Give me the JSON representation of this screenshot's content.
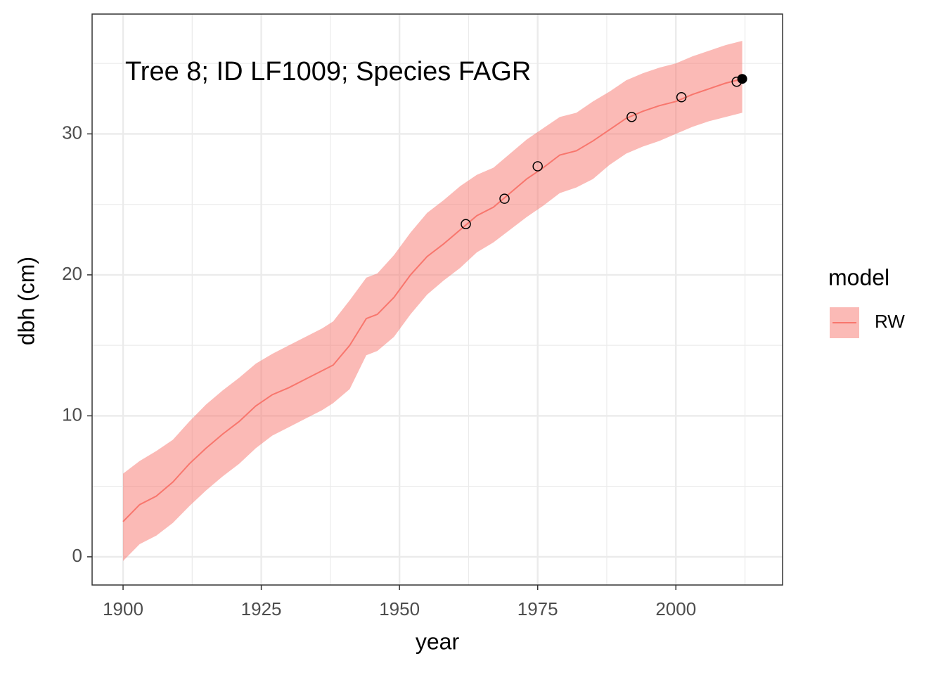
{
  "chart_data": {
    "type": "line",
    "x_label": "year",
    "y_label": "dbh (cm)",
    "annotation": "Tree 8; ID LF1009; Species FAGR",
    "legend_title": "model",
    "legend": "right",
    "x": [
      1900,
      1903,
      1906,
      1909,
      1912,
      1915,
      1918,
      1921,
      1924,
      1927,
      1930,
      1933,
      1936,
      1938,
      1941,
      1944,
      1946,
      1949,
      1952,
      1955,
      1958,
      1961,
      1964,
      1967,
      1970,
      1973,
      1976,
      1979,
      1982,
      1985,
      1988,
      1991,
      1994,
      1997,
      2000,
      2003,
      2006,
      2009,
      2012
    ],
    "series": [
      {
        "name": "RW",
        "color": "#F8766D",
        "values": [
          2.5,
          3.7,
          4.3,
          5.3,
          6.6,
          7.7,
          8.7,
          9.6,
          10.7,
          11.5,
          12.0,
          12.6,
          13.2,
          13.6,
          15.0,
          16.9,
          17.2,
          18.4,
          20.0,
          21.3,
          22.2,
          23.2,
          24.2,
          24.8,
          25.8,
          26.8,
          27.6,
          28.5,
          28.8,
          29.5,
          30.3,
          31.1,
          31.6,
          32.0,
          32.3,
          32.8,
          33.2,
          33.6,
          33.9
        ],
        "upper": [
          5.9,
          6.8,
          7.5,
          8.3,
          9.6,
          10.8,
          11.8,
          12.7,
          13.7,
          14.4,
          15.0,
          15.6,
          16.2,
          16.7,
          18.2,
          19.8,
          20.1,
          21.4,
          23.0,
          24.4,
          25.3,
          26.3,
          27.1,
          27.6,
          28.6,
          29.6,
          30.4,
          31.2,
          31.5,
          32.3,
          33.0,
          33.8,
          34.3,
          34.7,
          35.0,
          35.5,
          35.9,
          36.3,
          36.6
        ],
        "lower": [
          -0.3,
          0.9,
          1.5,
          2.4,
          3.6,
          4.7,
          5.7,
          6.6,
          7.7,
          8.6,
          9.2,
          9.8,
          10.4,
          10.9,
          11.9,
          14.3,
          14.6,
          15.6,
          17.2,
          18.6,
          19.6,
          20.5,
          21.6,
          22.3,
          23.2,
          24.1,
          24.9,
          25.8,
          26.2,
          26.8,
          27.8,
          28.6,
          29.1,
          29.5,
          30.0,
          30.5,
          30.9,
          31.2,
          31.5
        ]
      }
    ],
    "observations": {
      "x": [
        1962,
        1969,
        1975,
        1992,
        2001,
        2011
      ],
      "values": [
        23.6,
        25.4,
        27.7,
        31.2,
        32.6,
        33.7
      ]
    },
    "last_observation": {
      "x": 2012,
      "value": 33.9
    },
    "xlim": [
      1894.4,
      2019.3
    ],
    "ylim": [
      -2.0,
      38.5
    ],
    "xticks": [
      1900,
      1925,
      1950,
      1975,
      2000
    ],
    "yticks": [
      0,
      10,
      20,
      30
    ],
    "minor_xticks": [
      1912.5,
      1937.5,
      1962.5,
      1987.5,
      2012.5
    ],
    "minor_yticks": [
      5,
      15,
      25,
      35
    ],
    "grid": true
  }
}
